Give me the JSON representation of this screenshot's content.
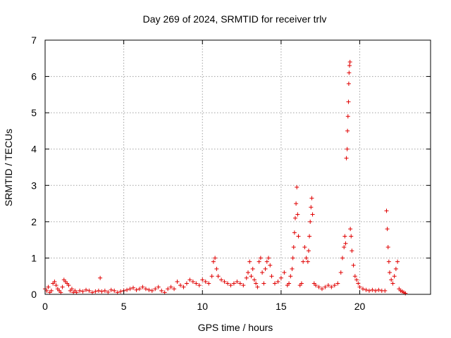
{
  "chart_data": {
    "type": "scatter",
    "title": "Day 269 of 2024, SRMTID for receiver trlv",
    "xlabel": "GPS time / hours",
    "ylabel": "SRMTID / TECUs",
    "xlim": [
      0,
      24.5
    ],
    "ylim": [
      0,
      7
    ],
    "xticks": [
      0,
      5,
      10,
      15,
      20
    ],
    "yticks": [
      0,
      1,
      2,
      3,
      4,
      5,
      6,
      7
    ],
    "grid": true,
    "marker": "+",
    "color": "#e00000",
    "series": [
      {
        "name": "SRMTID",
        "x": [
          0.0,
          0.1,
          0.2,
          0.3,
          0.4,
          0.5,
          0.6,
          0.7,
          0.8,
          0.9,
          1.0,
          1.1,
          1.2,
          1.3,
          1.4,
          1.5,
          1.6,
          1.7,
          1.8,
          1.9,
          2.0,
          2.2,
          2.4,
          2.6,
          2.8,
          3.0,
          3.2,
          3.4,
          3.5,
          3.6,
          3.8,
          4.0,
          4.2,
          4.4,
          4.6,
          4.8,
          5.0,
          5.2,
          5.4,
          5.6,
          5.8,
          6.0,
          6.2,
          6.4,
          6.6,
          6.8,
          7.0,
          7.2,
          7.4,
          7.6,
          7.8,
          8.0,
          8.2,
          8.4,
          8.6,
          8.8,
          9.0,
          9.2,
          9.4,
          9.6,
          9.8,
          10.0,
          10.2,
          10.4,
          10.6,
          10.7,
          10.8,
          10.9,
          11.0,
          11.2,
          11.4,
          11.6,
          11.8,
          12.0,
          12.2,
          12.4,
          12.6,
          12.8,
          12.9,
          13.0,
          13.1,
          13.2,
          13.3,
          13.4,
          13.5,
          13.6,
          13.7,
          13.8,
          13.9,
          14.0,
          14.1,
          14.2,
          14.3,
          14.4,
          14.6,
          14.8,
          15.0,
          15.2,
          15.4,
          15.5,
          15.6,
          15.7,
          15.75,
          15.8,
          15.85,
          15.9,
          15.95,
          16.0,
          16.05,
          16.1,
          16.2,
          16.3,
          16.4,
          16.5,
          16.6,
          16.7,
          16.75,
          16.8,
          16.85,
          16.9,
          16.95,
          17.0,
          17.1,
          17.2,
          17.4,
          17.6,
          17.8,
          18.0,
          18.2,
          18.4,
          18.6,
          18.8,
          18.9,
          19.0,
          19.05,
          19.1,
          19.15,
          19.2,
          19.22,
          19.25,
          19.28,
          19.3,
          19.32,
          19.35,
          19.38,
          19.4,
          19.45,
          19.5,
          19.6,
          19.7,
          19.8,
          19.9,
          20.0,
          20.2,
          20.4,
          20.6,
          20.8,
          21.0,
          21.2,
          21.4,
          21.6,
          21.7,
          21.75,
          21.8,
          21.85,
          21.9,
          22.0,
          22.1,
          22.2,
          22.3,
          22.4,
          22.5,
          22.6,
          22.7,
          22.8,
          22.9
        ],
        "y": [
          0.15,
          0.1,
          0.2,
          0.05,
          0.1,
          0.3,
          0.35,
          0.25,
          0.15,
          0.1,
          0.05,
          0.2,
          0.4,
          0.35,
          0.3,
          0.25,
          0.1,
          0.15,
          0.05,
          0.1,
          0.05,
          0.1,
          0.08,
          0.12,
          0.1,
          0.05,
          0.08,
          0.1,
          0.45,
          0.08,
          0.1,
          0.06,
          0.12,
          0.1,
          0.05,
          0.08,
          0.1,
          0.12,
          0.15,
          0.18,
          0.12,
          0.15,
          0.2,
          0.15,
          0.12,
          0.1,
          0.15,
          0.2,
          0.1,
          0.05,
          0.15,
          0.2,
          0.15,
          0.35,
          0.25,
          0.2,
          0.3,
          0.4,
          0.35,
          0.3,
          0.25,
          0.4,
          0.35,
          0.3,
          0.5,
          0.9,
          1.0,
          0.7,
          0.5,
          0.4,
          0.35,
          0.3,
          0.25,
          0.3,
          0.35,
          0.3,
          0.25,
          0.45,
          0.6,
          0.9,
          0.5,
          0.7,
          0.4,
          0.3,
          0.2,
          0.9,
          1.0,
          0.6,
          0.3,
          0.7,
          0.9,
          1.0,
          0.8,
          0.5,
          0.3,
          0.35,
          0.45,
          0.6,
          0.25,
          0.3,
          0.5,
          0.7,
          1.0,
          1.3,
          1.7,
          2.1,
          2.5,
          2.95,
          2.2,
          1.6,
          0.25,
          0.3,
          0.9,
          1.3,
          1.0,
          0.9,
          1.2,
          1.6,
          2.0,
          2.4,
          2.65,
          2.2,
          0.3,
          0.25,
          0.2,
          0.15,
          0.2,
          0.25,
          0.2,
          0.25,
          0.3,
          0.6,
          1.0,
          1.3,
          1.6,
          1.4,
          3.75,
          4.0,
          4.5,
          4.9,
          5.3,
          5.8,
          6.1,
          6.3,
          6.4,
          1.8,
          1.6,
          1.2,
          0.8,
          0.5,
          0.4,
          0.3,
          0.2,
          0.15,
          0.12,
          0.1,
          0.12,
          0.1,
          0.12,
          0.1,
          0.1,
          2.3,
          1.8,
          1.3,
          0.9,
          0.6,
          0.4,
          0.3,
          0.5,
          0.7,
          0.9,
          0.15,
          0.1,
          0.08,
          0.05,
          0.03
        ]
      }
    ]
  }
}
